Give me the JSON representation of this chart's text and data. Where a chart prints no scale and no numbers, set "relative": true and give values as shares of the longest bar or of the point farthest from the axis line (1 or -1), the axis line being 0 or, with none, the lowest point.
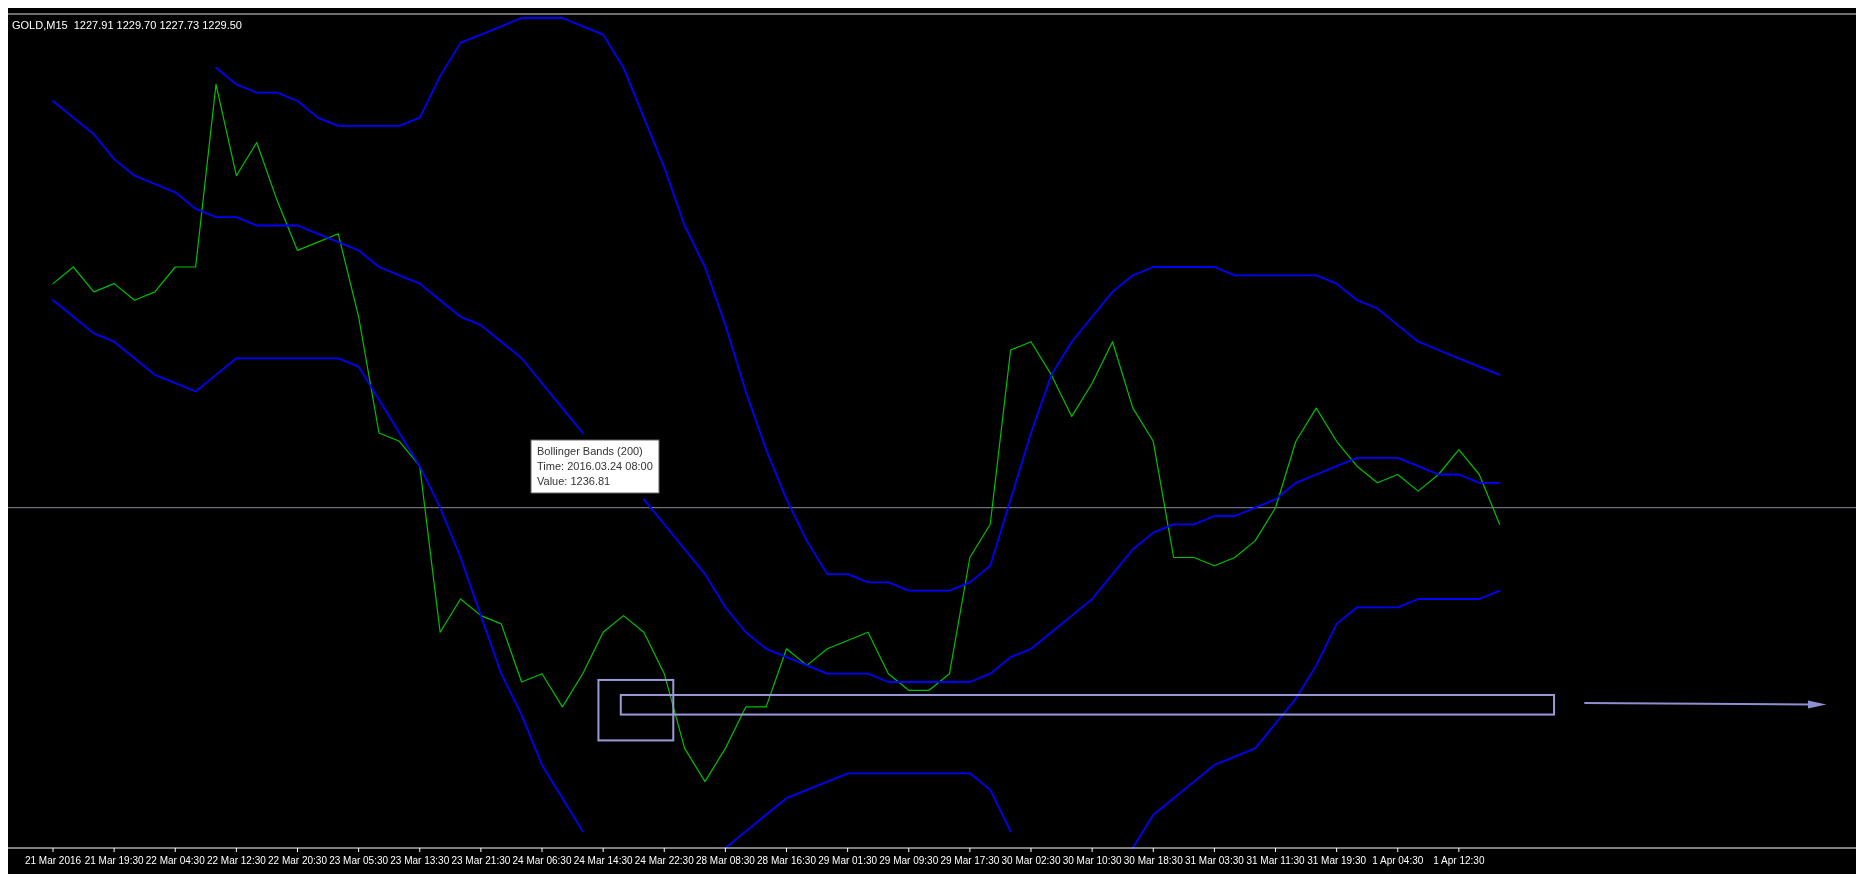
{
  "chart_data": {
    "type": "line",
    "title": "GOLD,M15  1227.91 1229.70 1227.73 1229.50",
    "relative": true,
    "categories": [
      "21 Mar 2016",
      null,
      null,
      "21 Mar 19:30",
      null,
      null,
      "22 Mar 04:30",
      null,
      null,
      "22 Mar 12:30",
      null,
      null,
      "22 Mar 20:30",
      null,
      null,
      "23 Mar 05:30",
      null,
      null,
      "23 Mar 13:30",
      null,
      null,
      "23 Mar 21:30",
      null,
      null,
      "24 Mar 06:30",
      null,
      null,
      "24 Mar 14:30",
      null,
      null,
      "24 Mar 22:30",
      null,
      null,
      "28 Mar 08:30",
      null,
      null,
      "28 Mar 16:30",
      null,
      null,
      "29 Mar 01:30",
      null,
      null,
      "29 Mar 09:30",
      null,
      null,
      "29 Mar 17:30",
      null,
      null,
      "30 Mar 02:30",
      null,
      null,
      "30 Mar 10:30",
      null,
      null,
      "30 Mar 18:30",
      null,
      null,
      "31 Mar 03:30",
      null,
      null,
      "31 Mar 11:30",
      null,
      null,
      "31 Mar 19:30",
      null,
      null,
      "1 Apr 04:30",
      null,
      null,
      "1 Apr 12:30",
      null,
      null,
      null,
      null,
      null,
      null,
      null,
      null,
      null,
      null,
      null,
      null,
      null,
      null,
      null,
      null,
      null,
      null,
      null
    ],
    "series": [
      {
        "color": "#00c000",
        "values": [
          0.68,
          0.7,
          0.67,
          0.68,
          0.66,
          0.67,
          0.7,
          0.7,
          0.92,
          0.81,
          0.85,
          0.78,
          0.72,
          0.73,
          0.74,
          0.64,
          0.5,
          0.49,
          0.46,
          0.26,
          0.3,
          0.28,
          0.27,
          0.2,
          0.21,
          0.17,
          0.21,
          0.26,
          0.28,
          0.26,
          0.21,
          0.12,
          0.08,
          0.12,
          0.17,
          0.17,
          0.24,
          0.22,
          0.24,
          0.25,
          0.26,
          0.21,
          0.19,
          0.19,
          0.21,
          0.35,
          0.39,
          0.6,
          0.61,
          0.57,
          0.52,
          0.56,
          0.61,
          0.53,
          0.49,
          0.35,
          0.35,
          0.34,
          0.35,
          0.37,
          0.41,
          0.49,
          0.53,
          0.49,
          0.46,
          0.44,
          0.45,
          0.43,
          0.45,
          0.48,
          0.45,
          0.39,
          null,
          null,
          null,
          null,
          null,
          null,
          null,
          null,
          null,
          null,
          null,
          null,
          null,
          null,
          null,
          null,
          null
        ]
      },
      {
        "color": "#0000ff",
        "values": [
          0.9,
          0.88,
          0.86,
          0.83,
          0.81,
          0.8,
          0.79,
          0.77,
          0.76,
          0.76,
          0.75,
          0.75,
          0.75,
          0.74,
          0.73,
          0.72,
          0.7,
          0.69,
          0.68,
          0.66,
          0.64,
          0.63,
          0.61,
          0.59,
          0.56,
          0.53,
          0.5,
          null,
          null,
          0.42,
          0.39,
          0.36,
          0.33,
          0.29,
          0.26,
          0.24,
          0.23,
          0.22,
          0.21,
          0.21,
          0.21,
          0.2,
          0.2,
          0.2,
          0.2,
          0.2,
          0.21,
          0.23,
          0.24,
          0.26,
          0.28,
          0.3,
          0.33,
          0.36,
          0.38,
          0.39,
          0.39,
          0.4,
          0.4,
          0.41,
          0.42,
          0.44,
          0.45,
          0.46,
          0.47,
          0.47,
          0.47,
          0.46,
          0.45,
          0.45,
          0.44,
          0.44,
          null,
          null,
          null,
          null,
          null,
          null,
          null,
          null,
          null,
          null,
          null,
          null,
          null,
          null,
          null,
          null,
          null
        ]
      },
      {
        "color": "#0000ff",
        "values": [
          null,
          null,
          null,
          null,
          null,
          null,
          null,
          null,
          0.94,
          0.92,
          0.91,
          0.91,
          0.9,
          0.88,
          0.87,
          0.87,
          0.87,
          0.87,
          0.88,
          0.93,
          0.97,
          0.98,
          0.99,
          1.0,
          1.0,
          1.0,
          0.99,
          0.98,
          0.94,
          0.88,
          0.82,
          0.75,
          0.7,
          0.63,
          0.55,
          0.48,
          0.42,
          0.37,
          0.33,
          0.33,
          0.32,
          0.32,
          0.31,
          0.31,
          0.31,
          0.32,
          0.34,
          0.42,
          0.5,
          0.57,
          0.61,
          0.64,
          0.67,
          0.69,
          0.7,
          0.7,
          0.7,
          0.7,
          0.69,
          0.69,
          0.69,
          0.69,
          0.69,
          0.68,
          0.66,
          0.65,
          0.63,
          0.61,
          0.6,
          0.59,
          0.58,
          0.57,
          null,
          null,
          null,
          null,
          null,
          null,
          null,
          null,
          null,
          null,
          null,
          null,
          null,
          null,
          null,
          null,
          null
        ]
      },
      {
        "color": "#0000ff",
        "values": [
          0.66,
          0.64,
          0.62,
          0.61,
          0.59,
          0.57,
          0.56,
          0.55,
          0.57,
          0.59,
          0.59,
          0.59,
          0.59,
          0.59,
          0.59,
          0.58,
          0.54,
          0.5,
          0.46,
          0.41,
          0.35,
          0.28,
          0.21,
          0.16,
          0.1,
          0.06,
          0.02,
          null,
          null,
          null,
          null,
          null,
          null,
          0,
          0.02,
          0.04,
          0.06,
          0.07,
          0.08,
          0.09,
          0.09,
          0.09,
          0.09,
          0.09,
          0.09,
          0.09,
          0.07,
          0.02,
          null,
          null,
          null,
          null,
          null,
          0,
          0.04,
          0.06,
          0.08,
          0.1,
          0.11,
          0.12,
          0.15,
          0.18,
          0.22,
          0.27,
          0.29,
          0.29,
          0.29,
          0.3,
          0.3,
          0.3,
          0.3,
          0.31,
          null,
          null,
          null,
          null,
          null,
          null,
          null,
          null,
          null,
          null,
          null,
          null,
          null,
          null,
          null,
          null,
          null
        ]
      }
    ],
    "ref_lines": [
      {
        "axis": "y",
        "value": 0.41,
        "color": "#8a8a9a"
      }
    ],
    "annotations": [
      "Bollinger Bands (200)\nTime: 2016.03.24 08:00\nValue: 1236.81"
    ]
  }
}
